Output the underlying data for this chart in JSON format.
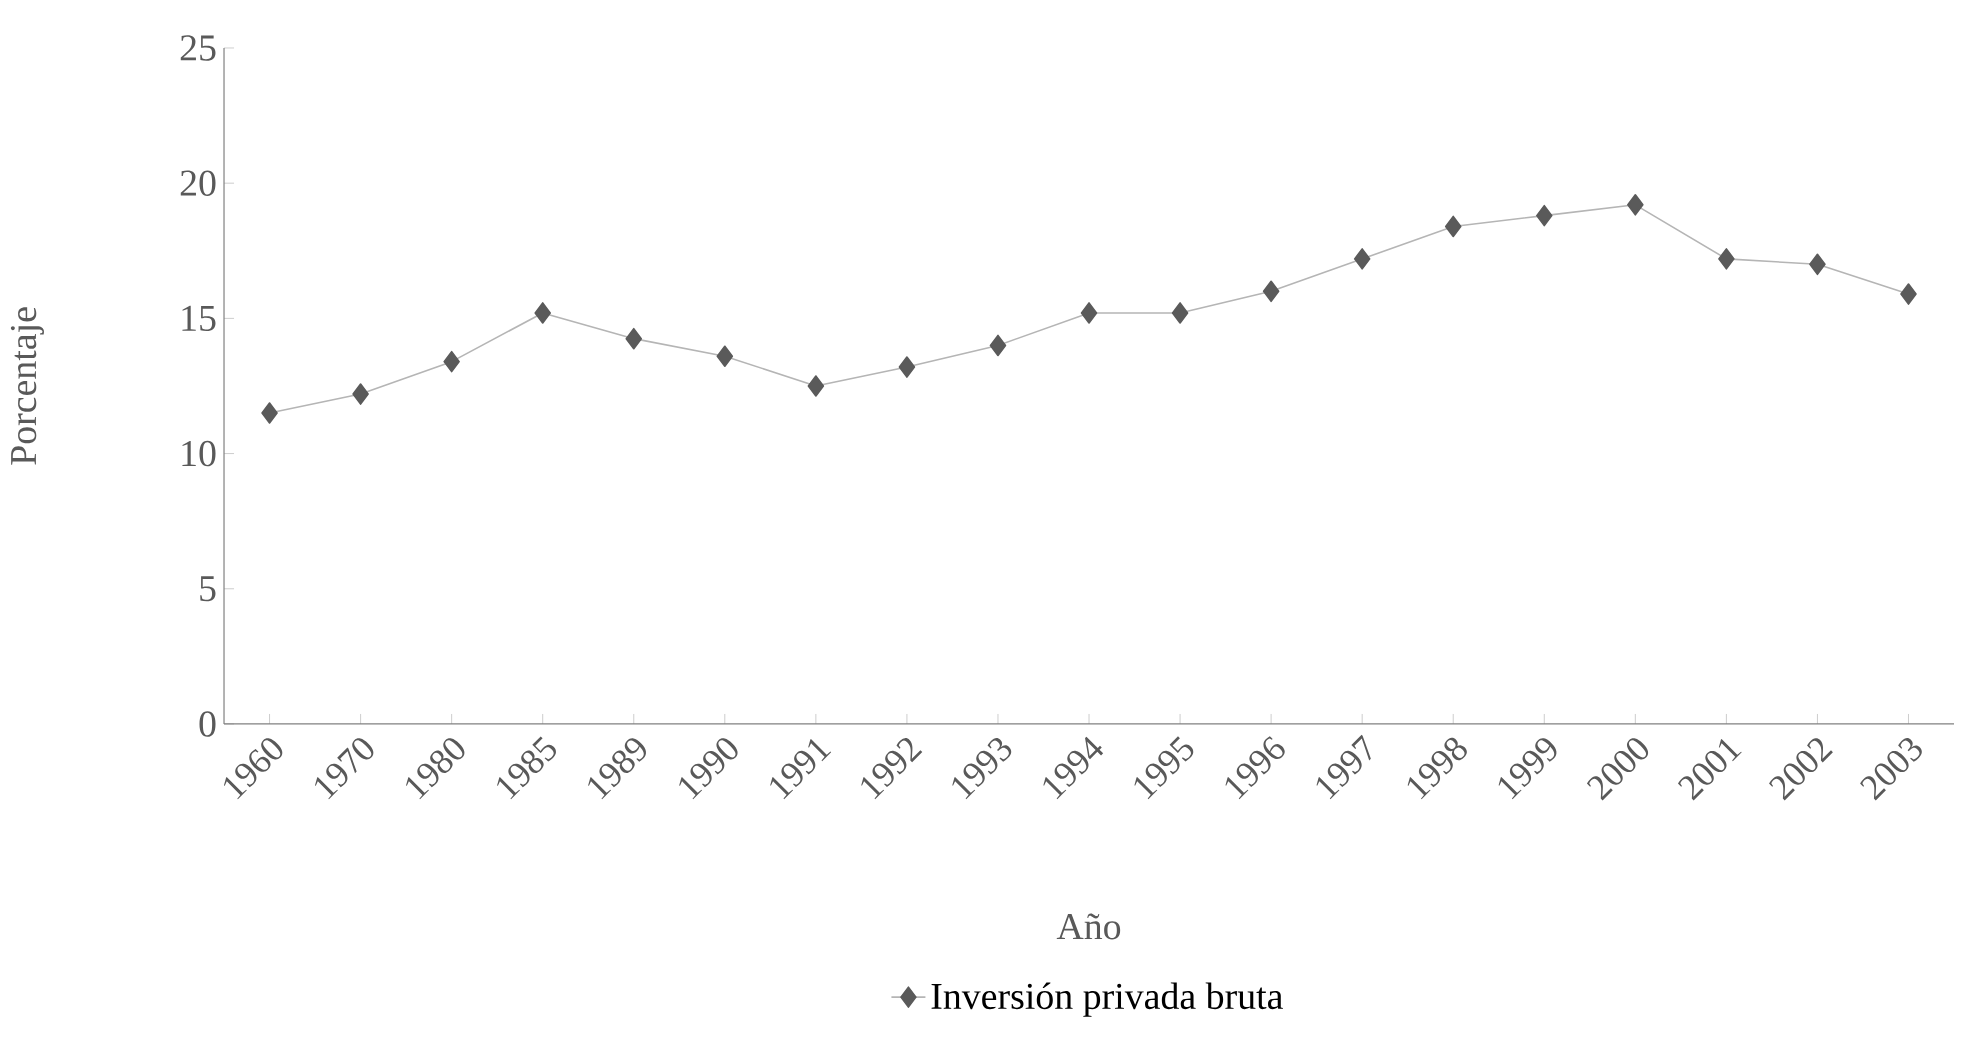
{
  "chart_data": {
    "type": "line",
    "xlabel": "Año",
    "ylabel": "Porcentaje",
    "categories": [
      "1960",
      "1970",
      "1980",
      "1985",
      "1989",
      "1990",
      "1991",
      "1992",
      "1993",
      "1994",
      "1995",
      "1996",
      "1997",
      "1998",
      "1999",
      "2000",
      "2001",
      "2002",
      "2003"
    ],
    "series": [
      {
        "name": "Inversión privada  bruta",
        "color": "#5a5a5a",
        "values": [
          11.5,
          12.2,
          13.4,
          15.2,
          14.25,
          13.6,
          12.5,
          13.2,
          14.0,
          15.2,
          15.2,
          16.0,
          17.2,
          18.4,
          18.8,
          19.2,
          17.2,
          17.0,
          15.9
        ]
      }
    ],
    "ylim": [
      0,
      25
    ],
    "yticks": [
      0,
      5,
      10,
      15,
      20,
      25
    ],
    "marker": "diamond",
    "line_style": "solid",
    "legend": "bottom"
  }
}
